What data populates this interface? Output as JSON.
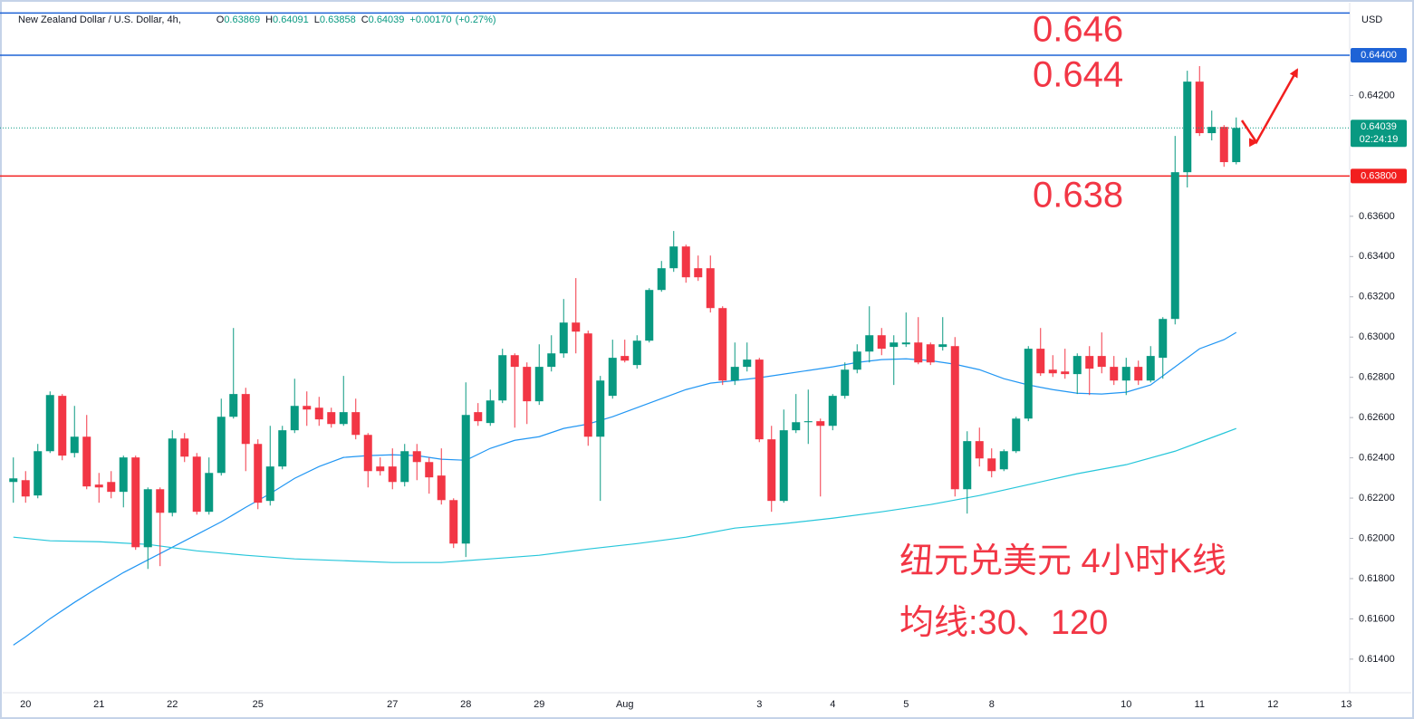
{
  "chart_data": {
    "type": "candlestick",
    "symbol": "New Zealand Dollar / U.S. Dollar, 4h,",
    "ohlc_keys": [
      "O",
      "H",
      "L",
      "C"
    ],
    "change": {
      "value": 0.0017,
      "label": "+0.00170"
    },
    "change_pct": {
      "value": 0.27,
      "label": "(+0.27%)"
    },
    "currency": "USD",
    "countdown": "02:24:19",
    "up_color": "#089981",
    "down_color": "#f23645",
    "ylim": [
      0.61233,
      0.64652
    ],
    "yticks": [
      {
        "value": 0.614,
        "label": "0.61400"
      },
      {
        "value": 0.616,
        "label": "0.61600"
      },
      {
        "value": 0.618,
        "label": "0.61800"
      },
      {
        "value": 0.62,
        "label": "0.62000"
      },
      {
        "value": 0.622,
        "label": "0.62200"
      },
      {
        "value": 0.624,
        "label": "0.62400"
      },
      {
        "value": 0.626,
        "label": "0.62600"
      },
      {
        "value": 0.628,
        "label": "0.62800"
      },
      {
        "value": 0.63,
        "label": "0.63000"
      },
      {
        "value": 0.632,
        "label": "0.63200"
      },
      {
        "value": 0.634,
        "label": "0.63400"
      },
      {
        "value": 0.636,
        "label": "0.63600"
      },
      {
        "value": 0.642,
        "label": "0.64200"
      }
    ],
    "categories": [
      null,
      "20",
      null,
      null,
      null,
      null,
      null,
      "21",
      null,
      null,
      null,
      null,
      null,
      "22",
      null,
      null,
      null,
      null,
      null,
      null,
      "25",
      null,
      null,
      null,
      null,
      null,
      null,
      null,
      null,
      null,
      null,
      "27",
      null,
      null,
      null,
      null,
      null,
      "28",
      null,
      null,
      null,
      null,
      null,
      "29",
      null,
      null,
      null,
      null,
      null,
      null,
      "Aug",
      null,
      null,
      null,
      null,
      null,
      null,
      null,
      null,
      null,
      null,
      "3",
      null,
      null,
      null,
      null,
      null,
      "4",
      null,
      null,
      null,
      null,
      null,
      "5",
      null,
      null,
      null,
      null,
      null,
      null,
      "8",
      null,
      null,
      null,
      null,
      null,
      null,
      null,
      null,
      null,
      null,
      "10",
      null,
      null,
      null,
      null,
      null,
      "11",
      null,
      null,
      null,
      null,
      null,
      "12",
      null,
      null,
      null,
      null,
      null,
      "13"
    ],
    "candles": {
      "open": [
        0.6228,
        0.62289,
        0.62213,
        0.62433,
        0.62708,
        0.62424,
        0.62505,
        0.62267,
        0.6228,
        0.62231,
        0.62402,
        0.61956,
        0.62244,
        0.62127,
        0.62496,
        0.62406,
        0.62132,
        0.62325,
        0.62604,
        0.62717,
        0.62469,
        0.62186,
        0.62357,
        0.62537,
        0.62658,
        0.62649,
        0.62627,
        0.62568,
        0.62627,
        0.62514,
        0.62357,
        0.62357,
        0.6228,
        0.62433,
        0.62379,
        0.62312,
        0.6219,
        0.61974,
        0.62627,
        0.62573,
        0.62685,
        0.6291,
        0.62852,
        0.62681,
        0.62852,
        0.62919,
        0.63072,
        0.63018,
        0.62505,
        0.62708,
        0.62906,
        0.62861,
        0.62982,
        0.63234,
        0.63342,
        0.6345,
        0.63342,
        0.63342,
        0.63144,
        0.62784,
        0.62852,
        0.62888,
        0.62492,
        0.62186,
        0.62537,
        0.62577,
        0.62582,
        0.62559,
        0.62708,
        0.62838,
        0.62928,
        0.63009,
        0.62951,
        0.62964,
        0.62973,
        0.62964,
        0.62951,
        0.62955,
        0.62244,
        0.62483,
        0.62397,
        0.62343,
        0.62433,
        0.62595,
        0.62942,
        0.62838,
        0.62829,
        0.62816,
        0.62906,
        0.62906,
        0.62852,
        0.62784,
        0.62852,
        0.62784,
        0.62897,
        0.6309,
        0.63819,
        0.64269,
        0.64013,
        0.64044,
        0.63869,
        null,
        null,
        null,
        null,
        null,
        null,
        null,
        null,
        null
      ],
      "high": [
        0.62402,
        0.62334,
        0.62469,
        0.6273,
        0.62717,
        0.62658,
        0.62613,
        0.62325,
        0.62334,
        0.62411,
        0.62411,
        0.62253,
        0.62253,
        0.62537,
        0.62523,
        0.62424,
        0.62402,
        0.62694,
        0.63045,
        0.62748,
        0.62492,
        0.62559,
        0.62559,
        0.62793,
        0.6273,
        0.62703,
        0.62649,
        0.62807,
        0.62694,
        0.62523,
        0.62402,
        0.62447,
        0.62469,
        0.62469,
        0.62402,
        0.62447,
        0.62199,
        0.62775,
        0.62672,
        0.62739,
        0.62942,
        0.62919,
        0.62874,
        0.62964,
        0.63009,
        0.63189,
        0.63293,
        0.63032,
        0.62807,
        0.62987,
        0.62987,
        0.63009,
        0.63243,
        0.63378,
        0.63527,
        0.63459,
        0.63405,
        0.63405,
        0.63153,
        0.62973,
        0.62973,
        0.62897,
        0.62559,
        0.6264,
        0.62717,
        0.62739,
        0.62595,
        0.62717,
        0.62874,
        0.62964,
        0.63153,
        0.63045,
        0.63009,
        0.63122,
        0.63099,
        0.62973,
        0.63099,
        0.63,
        0.62532,
        0.6255,
        0.62447,
        0.62442,
        0.62604,
        0.62955,
        0.63045,
        0.6291,
        0.62942,
        0.62919,
        0.62955,
        0.63023,
        0.62906,
        0.62897,
        0.62883,
        0.62955,
        0.63099,
        0.63999,
        0.64323,
        0.64346,
        0.64125,
        0.64053,
        0.64091,
        null,
        null,
        null,
        null,
        null,
        null,
        null,
        null,
        null
      ],
      "low": [
        0.62177,
        0.62177,
        0.62199,
        0.62424,
        0.62388,
        0.62402,
        0.62244,
        0.62177,
        0.62199,
        0.62154,
        0.61943,
        0.61848,
        0.61862,
        0.62109,
        0.62379,
        0.62118,
        0.62118,
        0.62312,
        0.62595,
        0.62334,
        0.62145,
        0.62163,
        0.62343,
        0.62523,
        0.62559,
        0.62559,
        0.6255,
        0.62559,
        0.62492,
        0.62253,
        0.62312,
        0.62244,
        0.62258,
        0.62289,
        0.62222,
        0.62168,
        0.61952,
        0.61907,
        0.62559,
        0.62559,
        0.62672,
        0.6255,
        0.62568,
        0.62663,
        0.62829,
        0.62897,
        0.62919,
        0.6246,
        0.62186,
        0.62694,
        0.62874,
        0.62843,
        0.62973,
        0.63225,
        0.63324,
        0.6327,
        0.63279,
        0.63122,
        0.62762,
        0.62762,
        0.62829,
        0.62478,
        0.62132,
        0.62177,
        0.62523,
        0.62469,
        0.62208,
        0.62537,
        0.62694,
        0.6282,
        0.62874,
        0.6291,
        0.62762,
        0.62951,
        0.62865,
        0.62861,
        0.62933,
        0.62208,
        0.62123,
        0.62357,
        0.62303,
        0.62334,
        0.62424,
        0.62582,
        0.62807,
        0.62802,
        0.62793,
        0.62717,
        0.62712,
        0.6282,
        0.62762,
        0.62712,
        0.62762,
        0.62775,
        0.62793,
        0.63063,
        0.63743,
        0.63999,
        0.63977,
        0.63846,
        0.63858,
        null,
        null,
        null,
        null,
        null,
        null,
        null,
        null,
        null
      ],
      "close": [
        0.62298,
        0.62208,
        0.62433,
        0.62712,
        0.62411,
        0.62505,
        0.62258,
        0.62253,
        0.62231,
        0.62402,
        0.61956,
        0.62244,
        0.62127,
        0.62496,
        0.62406,
        0.62132,
        0.62325,
        0.62604,
        0.62717,
        0.62469,
        0.62177,
        0.62357,
        0.62537,
        0.62658,
        0.6264,
        0.62591,
        0.62568,
        0.62627,
        0.62514,
        0.62334,
        0.62334,
        0.6228,
        0.62433,
        0.62379,
        0.62303,
        0.6219,
        0.61974,
        0.62613,
        0.62582,
        0.62685,
        0.6291,
        0.62852,
        0.62681,
        0.62852,
        0.62919,
        0.63072,
        0.63027,
        0.62505,
        0.62784,
        0.62897,
        0.62883,
        0.62982,
        0.63234,
        0.63342,
        0.6345,
        0.63297,
        0.63297,
        0.63144,
        0.62784,
        0.62852,
        0.62888,
        0.62492,
        0.62186,
        0.62537,
        0.62577,
        0.62582,
        0.62559,
        0.62708,
        0.62838,
        0.62928,
        0.63009,
        0.62942,
        0.62973,
        0.62973,
        0.62874,
        0.62874,
        0.62964,
        0.62244,
        0.62483,
        0.62397,
        0.62334,
        0.62433,
        0.62595,
        0.62942,
        0.6282,
        0.6282,
        0.62816,
        0.62906,
        0.62843,
        0.62852,
        0.62784,
        0.62852,
        0.62784,
        0.62906,
        0.6309,
        0.63819,
        0.64269,
        0.64013,
        0.64044,
        0.63869,
        0.64039,
        null,
        null,
        null,
        null,
        null,
        null,
        null,
        null,
        null
      ]
    },
    "moving_averages": [
      {
        "color": "#2196f3",
        "x": [
          0,
          1,
          3,
          5,
          7,
          9,
          11,
          13,
          15,
          17,
          19,
          21,
          23,
          25,
          27,
          29,
          31,
          33,
          35,
          37,
          39,
          41,
          43,
          45,
          47,
          49,
          51,
          53,
          55,
          57,
          59,
          61,
          63,
          65,
          67,
          69,
          71,
          73,
          75,
          77,
          79,
          81,
          83,
          85,
          87,
          89,
          91,
          93,
          95,
          97,
          99,
          100
        ],
        "values": [
          0.6147,
          0.61511,
          0.61601,
          0.61682,
          0.61758,
          0.6183,
          0.61893,
          0.61956,
          0.62019,
          0.62082,
          0.62154,
          0.62222,
          0.62298,
          0.62357,
          0.62402,
          0.62411,
          0.62415,
          0.62411,
          0.62393,
          0.62388,
          0.62447,
          0.62487,
          0.62505,
          0.62546,
          0.62568,
          0.62604,
          0.62649,
          0.62694,
          0.62739,
          0.62771,
          0.62784,
          0.62798,
          0.62816,
          0.62834,
          0.62852,
          0.62874,
          0.62888,
          0.62892,
          0.62883,
          0.62865,
          0.62838,
          0.62793,
          0.62762,
          0.62739,
          0.62721,
          0.62717,
          0.62726,
          0.62762,
          0.62852,
          0.62942,
          0.62987,
          0.63023
        ]
      },
      {
        "color": "#26c6da",
        "x": [
          0,
          3,
          7,
          11,
          15,
          19,
          23,
          27,
          31,
          35,
          39,
          43,
          47,
          51,
          55,
          59,
          63,
          67,
          71,
          75,
          79,
          83,
          87,
          91,
          95,
          97,
          99,
          100
        ],
        "values": [
          0.62006,
          0.61988,
          0.61983,
          0.6197,
          0.61938,
          0.61916,
          0.61898,
          0.61889,
          0.6188,
          0.6188,
          0.61898,
          0.61916,
          0.61947,
          0.61974,
          0.62006,
          0.62051,
          0.62073,
          0.621,
          0.62132,
          0.62168,
          0.62213,
          0.62267,
          0.62321,
          0.62366,
          0.62433,
          0.62478,
          0.62523,
          0.62546
        ]
      }
    ],
    "hlines": [
      {
        "value": 0.6461,
        "color": "#1e63d6"
      },
      {
        "value": 0.644,
        "color": "#1e63d6",
        "label": "0.64400"
      },
      {
        "value": 0.638,
        "color": "#f21f1f",
        "label": "0.63800"
      }
    ],
    "annotation_color": "#f23645",
    "price_targets": [
      0.646,
      0.644,
      0.638
    ],
    "notes": [
      "纽元兑美元 4小时K线",
      "均线:30、120"
    ]
  }
}
